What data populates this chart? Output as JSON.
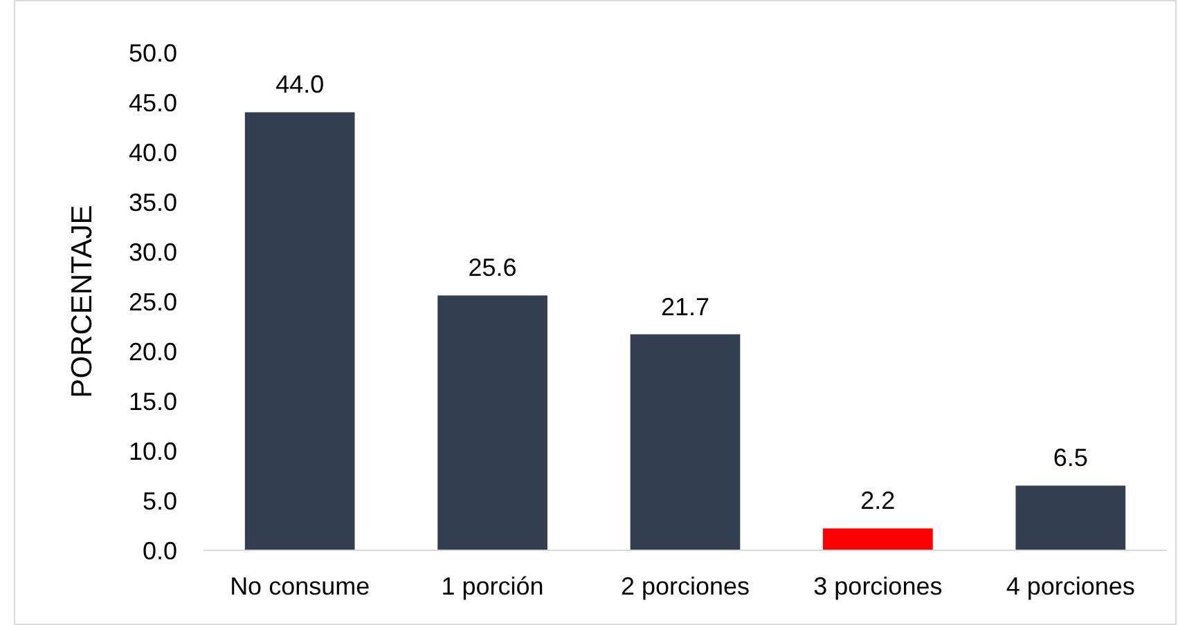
{
  "chart_data": {
    "type": "bar",
    "ylabel": "PORCENTAJE",
    "categories": [
      "No consume",
      "1 porción",
      "2 porciones",
      "3 porciones",
      "4 porciones"
    ],
    "values": [
      44.0,
      25.6,
      21.7,
      2.2,
      6.5
    ],
    "colors": [
      "#333f50",
      "#333f50",
      "#333f50",
      "#ff0000",
      "#333f50"
    ],
    "ylim": [
      0,
      50
    ],
    "yticks": [
      {
        "value": 0,
        "label": "0.0"
      },
      {
        "value": 5,
        "label": "5.0"
      },
      {
        "value": 10,
        "label": "10.0"
      },
      {
        "value": 15,
        "label": "15.0"
      },
      {
        "value": 20,
        "label": "20.0"
      },
      {
        "value": 25,
        "label": "25.0"
      },
      {
        "value": 30,
        "label": "30.0"
      },
      {
        "value": 35,
        "label": "35.0"
      },
      {
        "value": 40,
        "label": "40.0"
      },
      {
        "value": 45,
        "label": "45.0"
      },
      {
        "value": 50,
        "label": "50.0"
      }
    ],
    "value_labels": [
      "44.0",
      "25.6",
      "21.7",
      "2.2",
      "6.5"
    ],
    "grid": false
  }
}
